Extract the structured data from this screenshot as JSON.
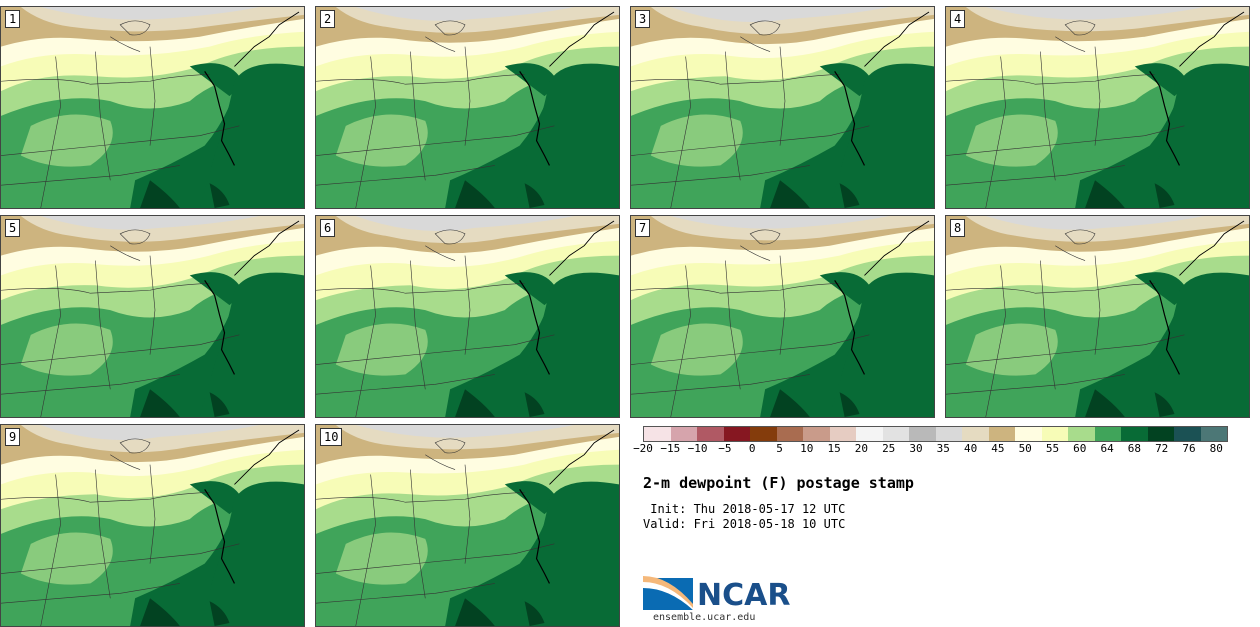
{
  "panels": [
    "1",
    "2",
    "3",
    "4",
    "5",
    "6",
    "7",
    "8",
    "9",
    "10"
  ],
  "colorbar": {
    "colors": [
      "#f6e3e6",
      "#d6a4ac",
      "#b05964",
      "#861721",
      "#843c0c",
      "#a96c50",
      "#c99b8a",
      "#e6ccc2",
      "#f4f4f4",
      "#e2e2e2",
      "#b9b9b9",
      "#d9d9d9",
      "#e5dbc1",
      "#cdb47f",
      "#fffde1",
      "#f7fcb7",
      "#a8dc8c",
      "#40a45a",
      "#086b36",
      "#024221",
      "#1b5154",
      "#4c7776"
    ],
    "ticks": [
      "−20",
      "−15",
      "−10",
      "−5",
      "0",
      "5",
      "10",
      "15",
      "20",
      "25",
      "30",
      "35",
      "40",
      "45",
      "50",
      "55",
      "60",
      "64",
      "68",
      "72",
      "76",
      "80"
    ]
  },
  "title": "2-m dewpoint (F) postage stamp",
  "init": " Init: Thu 2018-05-17 12 UTC",
  "valid": "Valid: Fri 2018-05-18 10 UTC",
  "logo": {
    "text": "NCAR",
    "url": "ensemble.ucar.edu"
  }
}
